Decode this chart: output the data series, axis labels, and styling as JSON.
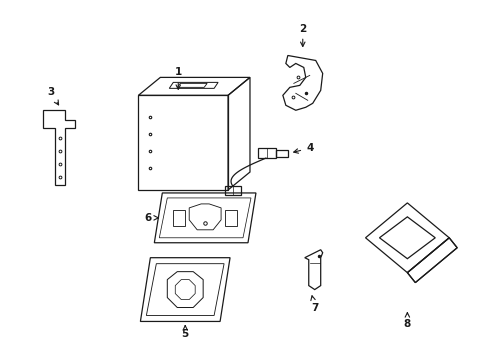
{
  "bg_color": "#ffffff",
  "line_color": "#1a1a1a",
  "figsize": [
    4.89,
    3.6
  ],
  "dpi": 100,
  "lw": 0.9
}
